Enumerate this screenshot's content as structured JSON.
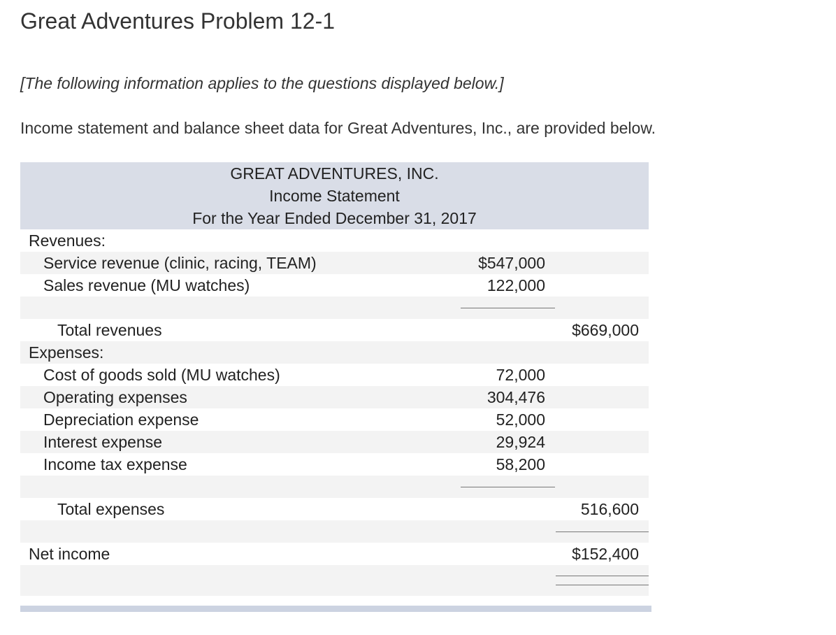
{
  "page": {
    "title": "Great Adventures Problem 12-1",
    "note": "[The following information applies to the questions displayed below.]",
    "intro": "Income statement and balance sheet data for Great Adventures, Inc., are provided below."
  },
  "statement": {
    "company": "GREAT ADVENTURES, INC.",
    "name": "Income Statement",
    "period": "For the Year Ended December 31, 2017",
    "revenues_label": "Revenues:",
    "revenues": [
      {
        "label": "Service revenue (clinic, racing, TEAM)",
        "amount": "$547,000"
      },
      {
        "label": "Sales revenue (MU watches)",
        "amount": "122,000"
      }
    ],
    "total_revenues": {
      "label": "Total revenues",
      "amount": "$669,000"
    },
    "expenses_label": "Expenses:",
    "expenses": [
      {
        "label": "Cost of goods sold (MU watches)",
        "amount": "72,000"
      },
      {
        "label": "Operating expenses",
        "amount": "304,476"
      },
      {
        "label": "Depreciation expense",
        "amount": "52,000"
      },
      {
        "label": "Interest expense",
        "amount": "29,924"
      },
      {
        "label": "Income tax expense",
        "amount": "58,200"
      }
    ],
    "total_expenses": {
      "label": "Total expenses",
      "amount": "516,600"
    },
    "net_income": {
      "label": "Net income",
      "amount": "$152,400"
    }
  }
}
